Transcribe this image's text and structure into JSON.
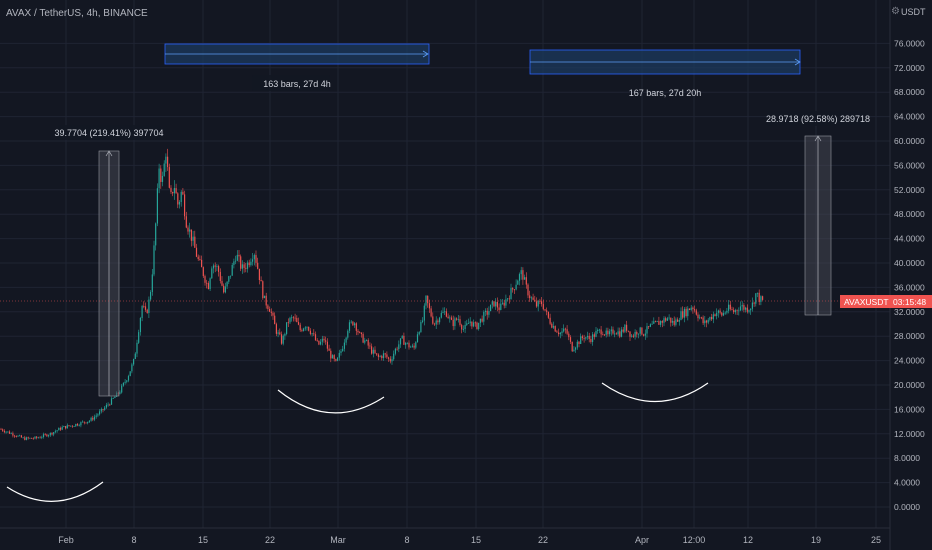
{
  "header": {
    "title": "AVAX / TetherUS, 4h, BINANCE",
    "currency": "USDT",
    "settings_icon": "gear-icon"
  },
  "chart_data": {
    "type": "candlestick",
    "symbol": "AVAXUSDT",
    "interval": "4h",
    "exchange": "BINANCE",
    "ylim": [
      -2,
      79
    ],
    "y_ticks": [
      "0.0000",
      "4.0000",
      "8.0000",
      "12.0000",
      "16.0000",
      "20.0000",
      "24.0000",
      "28.0000",
      "32.0000",
      "36.0000",
      "40.0000",
      "44.0000",
      "48.0000",
      "52.0000",
      "56.0000",
      "60.0000",
      "64.0000",
      "68.0000",
      "72.0000",
      "76.0000"
    ],
    "x_ticks": [
      "Feb",
      "8",
      "15",
      "22",
      "Mar",
      "8",
      "15",
      "22",
      "Apr",
      "12:00",
      "12",
      "19",
      "25"
    ],
    "last_price_label": "AVAXUSDT",
    "countdown": "03:15:48",
    "last_price": 33.6,
    "price_path": [
      [
        0,
        12.8
      ],
      [
        12,
        12.0
      ],
      [
        24,
        11.2
      ],
      [
        36,
        11.3
      ],
      [
        50,
        12.0
      ],
      [
        62,
        13.0
      ],
      [
        75,
        13.5
      ],
      [
        90,
        14.2
      ],
      [
        102,
        15.8
      ],
      [
        112,
        17.5
      ],
      [
        120,
        19.0
      ],
      [
        128,
        21.5
      ],
      [
        134,
        24.0
      ],
      [
        138,
        28.5
      ],
      [
        142,
        33.0
      ],
      [
        146,
        31.5
      ],
      [
        150,
        34.5
      ],
      [
        153,
        40.0
      ],
      [
        156,
        47.0
      ],
      [
        159,
        56.0
      ],
      [
        162,
        53.0
      ],
      [
        166,
        58.5
      ],
      [
        170,
        50.0
      ],
      [
        174,
        53.0
      ],
      [
        178,
        49.5
      ],
      [
        182,
        52.0
      ],
      [
        186,
        47.0
      ],
      [
        192,
        44.0
      ],
      [
        198,
        40.5
      ],
      [
        204,
        38.0
      ],
      [
        208,
        36.0
      ],
      [
        212,
        40.0
      ],
      [
        218,
        39.0
      ],
      [
        224,
        35.0
      ],
      [
        230,
        38.0
      ],
      [
        236,
        41.5
      ],
      [
        242,
        39.0
      ],
      [
        248,
        40.0
      ],
      [
        254,
        42.0
      ],
      [
        258,
        39.0
      ],
      [
        264,
        34.0
      ],
      [
        270,
        32.5
      ],
      [
        276,
        29.0
      ],
      [
        282,
        27.0
      ],
      [
        288,
        30.5
      ],
      [
        294,
        31.0
      ],
      [
        300,
        29.0
      ],
      [
        306,
        30.0
      ],
      [
        312,
        28.5
      ],
      [
        318,
        26.5
      ],
      [
        324,
        27.5
      ],
      [
        330,
        25.0
      ],
      [
        336,
        23.5
      ],
      [
        342,
        26.0
      ],
      [
        348,
        29.5
      ],
      [
        354,
        30.5
      ],
      [
        360,
        28.0
      ],
      [
        366,
        27.0
      ],
      [
        372,
        25.5
      ],
      [
        378,
        24.5
      ],
      [
        384,
        25.0
      ],
      [
        390,
        24.0
      ],
      [
        396,
        26.0
      ],
      [
        402,
        27.5
      ],
      [
        408,
        26.5
      ],
      [
        414,
        26.0
      ],
      [
        418,
        29.0
      ],
      [
        422,
        30.0
      ],
      [
        426,
        34.0
      ],
      [
        430,
        32.0
      ],
      [
        434,
        30.0
      ],
      [
        440,
        31.5
      ],
      [
        446,
        32.0
      ],
      [
        452,
        30.0
      ],
      [
        458,
        31.0
      ],
      [
        464,
        29.0
      ],
      [
        470,
        30.5
      ],
      [
        476,
        29.5
      ],
      [
        482,
        31.0
      ],
      [
        488,
        32.0
      ],
      [
        494,
        33.5
      ],
      [
        500,
        32.5
      ],
      [
        506,
        34.0
      ],
      [
        512,
        35.5
      ],
      [
        518,
        37.5
      ],
      [
        522,
        38.5
      ],
      [
        526,
        36.0
      ],
      [
        530,
        34.5
      ],
      [
        536,
        33.0
      ],
      [
        542,
        33.5
      ],
      [
        548,
        31.0
      ],
      [
        554,
        29.5
      ],
      [
        560,
        28.5
      ],
      [
        566,
        29.0
      ],
      [
        572,
        26.0
      ],
      [
        578,
        27.0
      ],
      [
        584,
        28.0
      ],
      [
        590,
        27.5
      ],
      [
        596,
        28.5
      ],
      [
        602,
        29.0
      ],
      [
        608,
        28.0
      ],
      [
        614,
        29.0
      ],
      [
        620,
        28.5
      ],
      [
        626,
        29.5
      ],
      [
        632,
        28.0
      ],
      [
        638,
        29.0
      ],
      [
        644,
        28.5
      ],
      [
        650,
        29.5
      ],
      [
        656,
        30.0
      ],
      [
        662,
        30.5
      ],
      [
        668,
        31.0
      ],
      [
        674,
        30.0
      ],
      [
        680,
        31.5
      ],
      [
        686,
        32.0
      ],
      [
        692,
        33.0
      ],
      [
        698,
        31.5
      ],
      [
        704,
        30.0
      ],
      [
        710,
        31.0
      ],
      [
        716,
        32.0
      ],
      [
        722,
        31.5
      ],
      [
        728,
        32.5
      ],
      [
        734,
        32.0
      ],
      [
        740,
        33.0
      ],
      [
        746,
        32.5
      ],
      [
        752,
        33.0
      ],
      [
        756,
        35.0
      ],
      [
        760,
        34.0
      ],
      [
        764,
        33.6
      ]
    ],
    "annotations": {
      "range1": "163 bars, 27d 4h",
      "range2": "167 bars, 27d 20h",
      "measure1": "39.7704 (219.41%) 397704",
      "measure2": "28.9718 (92.58%) 289718"
    },
    "colors": {
      "background": "#131722",
      "up": "#26a69a",
      "down": "#ef5350",
      "grid": "#1f2433",
      "axis_text": "#b2b5be",
      "range_fill": "#1c3a5e",
      "range_stroke": "#2962ff",
      "price_line": "#ef5350"
    }
  }
}
